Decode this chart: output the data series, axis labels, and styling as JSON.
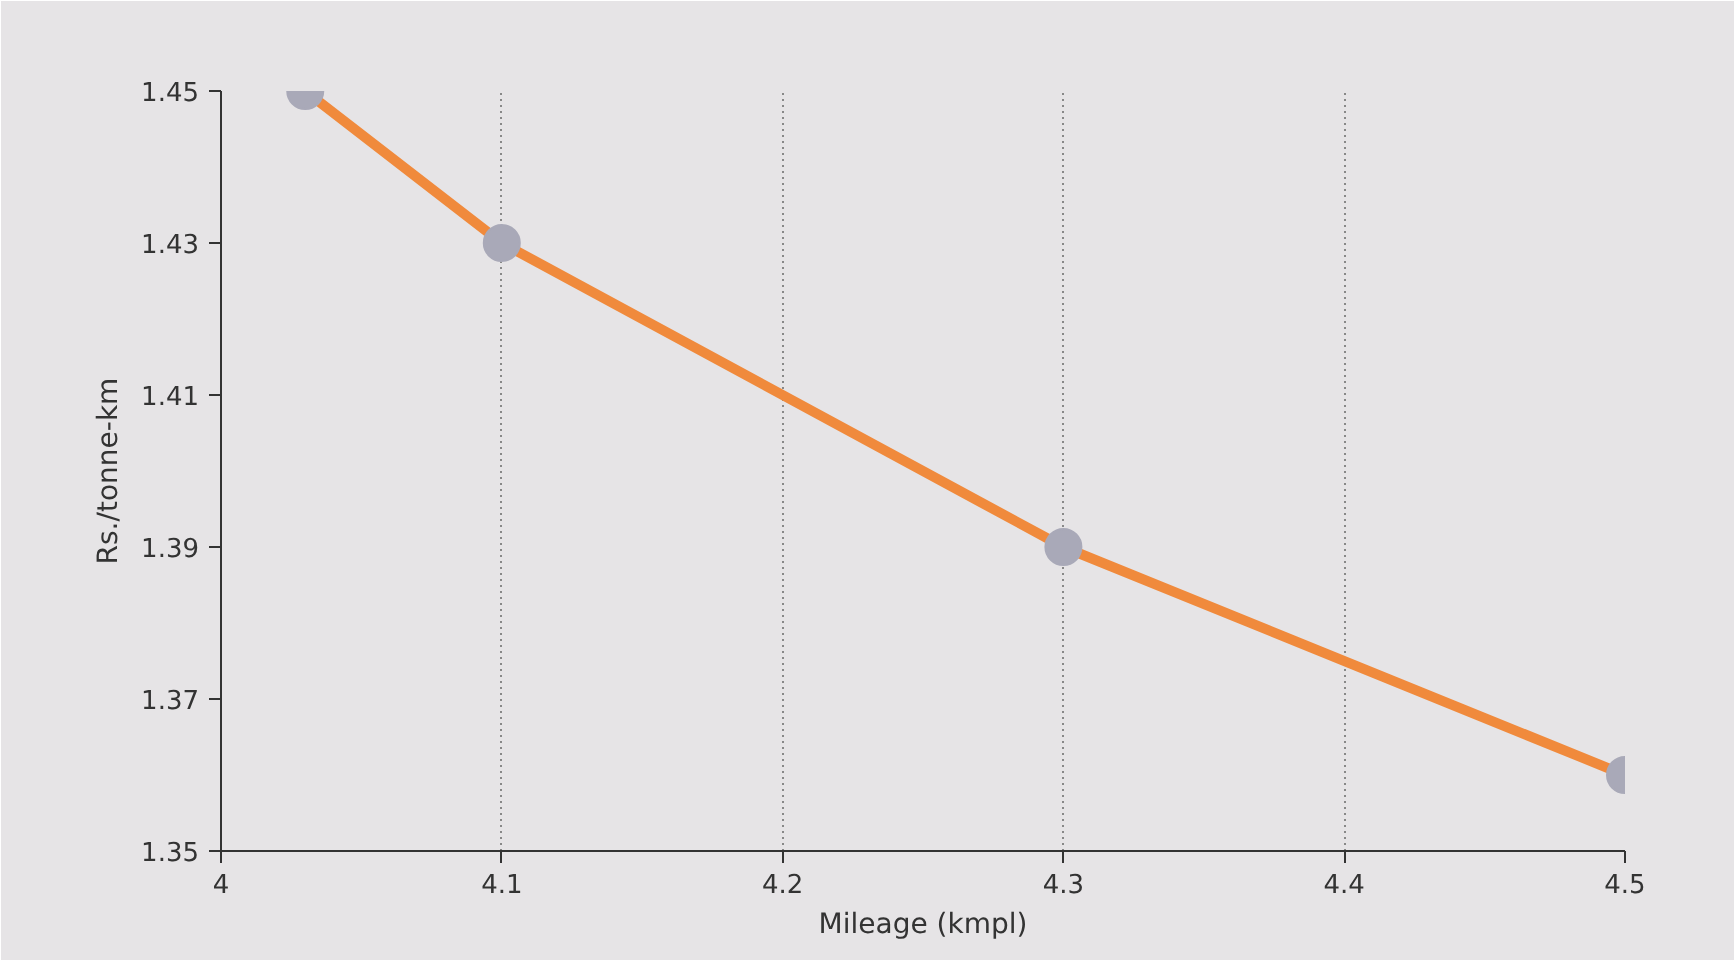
{
  "chart_data": {
    "type": "line",
    "xlabel": "Mileage (kmpl)",
    "ylabel": "Rs./tonne-km",
    "x": [
      4.03,
      4.1,
      4.3,
      4.5
    ],
    "series": [
      {
        "color": "#f08a3c",
        "values": [
          1.45,
          1.43,
          1.39,
          1.36
        ]
      }
    ],
    "xlim": [
      4,
      4.5
    ],
    "ylim": [
      1.35,
      1.45
    ],
    "xticks": [
      4,
      4.1,
      4.2,
      4.3,
      4.4,
      4.5
    ],
    "yticks": [
      1.35,
      1.37,
      1.39,
      1.41,
      1.43,
      1.45
    ],
    "grid": "x",
    "marker": "circle",
    "line_style": "solid"
  }
}
